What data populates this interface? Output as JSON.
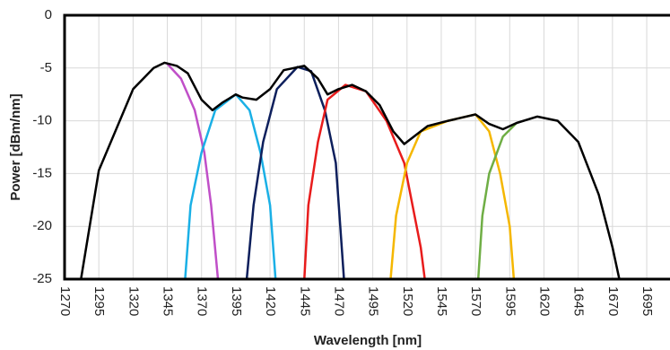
{
  "chart_data": {
    "type": "line",
    "xlabel": "Wavelength [nm]",
    "ylabel": "Power [dBm/nm]",
    "xlim": [
      1270,
      1712
    ],
    "ylim": [
      -25,
      0
    ],
    "xticks": [
      1270,
      1295,
      1320,
      1345,
      1370,
      1395,
      1420,
      1445,
      1470,
      1495,
      1520,
      1545,
      1570,
      1595,
      1620,
      1645,
      1670,
      1695
    ],
    "yticks": [
      0,
      -5,
      -10,
      -15,
      -20,
      -25
    ],
    "grid": true,
    "series": [
      {
        "color": "#c04fc8",
        "x": [
          1345,
          1355,
          1365,
          1372,
          1377,
          1382
        ],
        "values": [
          -4.6,
          -6,
          -9,
          -13,
          -18,
          -25
        ]
      },
      {
        "color": "#1ab0e6",
        "x": [
          1358,
          1362,
          1370,
          1380,
          1395,
          1405,
          1413,
          1420,
          1424
        ],
        "values": [
          -25,
          -18,
          -13,
          -9,
          -7.5,
          -9,
          -13,
          -18,
          -25
        ]
      },
      {
        "color": "#0d1f5c",
        "x": [
          1403,
          1408,
          1415,
          1425,
          1440,
          1450,
          1460,
          1468,
          1474
        ],
        "values": [
          -25,
          -18,
          -12,
          -7,
          -4.9,
          -5.3,
          -9,
          -14,
          -25
        ]
      },
      {
        "color": "#e81c1c",
        "x": [
          1445,
          1448,
          1455,
          1462,
          1475,
          1490,
          1505,
          1518,
          1530,
          1533
        ],
        "values": [
          -25,
          -18,
          -12,
          -8,
          -6.6,
          -7.2,
          -10,
          -14,
          -22,
          -25
        ]
      },
      {
        "color": "#f5b700",
        "x": [
          1508,
          1512,
          1520,
          1530,
          1550,
          1570,
          1580,
          1588,
          1595,
          1598
        ],
        "values": [
          -25,
          -19,
          -14,
          -11,
          -10,
          -9.4,
          -11,
          -15,
          -20,
          -25
        ]
      },
      {
        "color": "#6fae45",
        "x": [
          1572,
          1575,
          1580,
          1590,
          1600
        ],
        "values": [
          -25,
          -19,
          -15,
          -11.5,
          -10.2
        ]
      },
      {
        "color": "#000000",
        "x": [
          1282,
          1295,
          1320,
          1335,
          1343,
          1352,
          1360,
          1370,
          1378,
          1385,
          1395,
          1400,
          1410,
          1420,
          1430,
          1445,
          1455,
          1462,
          1470,
          1480,
          1490,
          1500,
          1510,
          1518,
          1525,
          1535,
          1550,
          1570,
          1580,
          1590,
          1600,
          1615,
          1630,
          1645,
          1660,
          1670,
          1675
        ],
        "values": [
          -25,
          -14.7,
          -7,
          -5,
          -4.5,
          -4.8,
          -5.5,
          -8,
          -9,
          -8.3,
          -7.5,
          -7.8,
          -8,
          -7,
          -5.2,
          -4.8,
          -6,
          -7.5,
          -7,
          -6.6,
          -7.2,
          -8.5,
          -11,
          -12.2,
          -11.5,
          -10.5,
          -10,
          -9.4,
          -10.3,
          -10.8,
          -10.2,
          -9.6,
          -10,
          -12,
          -17,
          -22,
          -25
        ]
      }
    ]
  }
}
